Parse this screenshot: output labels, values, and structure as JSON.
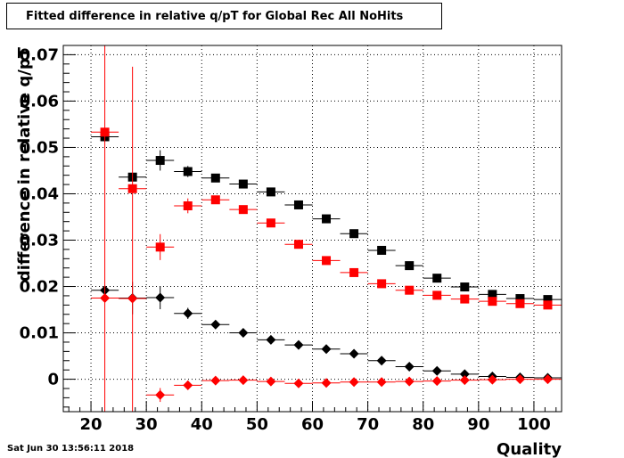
{
  "title": "Fitted difference in relative q/pT  for Global Rec All NoHits",
  "footer": "Sat Jun 30 13:56:11 2018",
  "chart_data": {
    "type": "scatter",
    "title": "Fitted difference in relative q/pT  for Global Rec All NoHits",
    "xlabel": "Quality",
    "ylabel": "difference in relative q/pT",
    "xlim": [
      15,
      105
    ],
    "ylim": [
      -0.007,
      0.072
    ],
    "xticks": [
      "20",
      "30",
      "40",
      "50",
      "60",
      "70",
      "80",
      "90",
      "100"
    ],
    "yticks": [
      "0",
      "0.01",
      "0.02",
      "0.03",
      "0.04",
      "0.05",
      "0.06",
      "0.07"
    ],
    "grid": true,
    "series": [
      {
        "marker": "square",
        "color": "#000000",
        "x": [
          22.5,
          27.5,
          32.5,
          37.5,
          42.5,
          47.5,
          52.5,
          57.5,
          62.5,
          67.5,
          72.5,
          77.5,
          82.5,
          87.5,
          92.5,
          97.5,
          102.5
        ],
        "y": [
          0.0523,
          0.0436,
          0.0472,
          0.0448,
          0.0434,
          0.0421,
          0.0404,
          0.0376,
          0.0346,
          0.0314,
          0.0278,
          0.0245,
          0.0218,
          0.0199,
          0.0183,
          0.0174,
          0.0172
        ],
        "yerr": [
          0.0008,
          0.0008,
          0.0022,
          0.0012,
          0.0008,
          0.0006,
          0.0005,
          0.0005,
          0.0005,
          0.0005,
          0.0005,
          0.0005,
          0.0005,
          0.0005,
          0.0004,
          0.0004,
          0.0004
        ]
      },
      {
        "marker": "square",
        "color": "#ff0000",
        "x": [
          22.5,
          27.5,
          32.5,
          37.5,
          42.5,
          47.5,
          52.5,
          57.5,
          62.5,
          67.5,
          72.5,
          77.5,
          82.5,
          87.5,
          92.5,
          97.5,
          102.5
        ],
        "y": [
          0.0533,
          0.0411,
          0.0285,
          0.0374,
          0.0387,
          0.0366,
          0.0337,
          0.0291,
          0.0256,
          0.023,
          0.0206,
          0.0192,
          0.0181,
          0.0173,
          0.0168,
          0.0163,
          0.016
        ],
        "yerr": [
          0.0008,
          0.0008,
          0.0028,
          0.0016,
          0.0008,
          0.0006,
          0.0005,
          0.0005,
          0.0005,
          0.0005,
          0.0005,
          0.0004,
          0.0004,
          0.0004,
          0.0004,
          0.0004,
          0.0004
        ]
      },
      {
        "marker": "diamond",
        "color": "#000000",
        "x": [
          22.5,
          27.5,
          32.5,
          37.5,
          42.5,
          47.5,
          52.5,
          57.5,
          62.5,
          67.5,
          72.5,
          77.5,
          82.5,
          87.5,
          92.5,
          97.5,
          102.5
        ],
        "y": [
          0.0192,
          0.0175,
          0.0176,
          0.0142,
          0.0118,
          0.01,
          0.0085,
          0.0074,
          0.0065,
          0.0055,
          0.004,
          0.0027,
          0.0018,
          0.0011,
          0.0006,
          0.0004,
          0.0003
        ],
        "yerr": [
          0.001,
          0.0035,
          0.0025,
          0.0012,
          0.0005,
          0.0004,
          0.0004,
          0.0003,
          0.0003,
          0.0003,
          0.0003,
          0.0003,
          0.0003,
          0.0003,
          0.0003,
          0.0003,
          0.0003
        ]
      },
      {
        "marker": "diamond",
        "color": "#ff0000",
        "x": [
          22.5,
          27.5,
          32.5,
          37.5,
          42.5,
          47.5,
          52.5,
          57.5,
          62.5,
          67.5,
          72.5,
          77.5,
          82.5,
          87.5,
          92.5,
          97.5,
          102.5
        ],
        "y": [
          0.0175,
          0.0174,
          -0.0034,
          -0.0013,
          -0.0003,
          -0.0002,
          -0.0005,
          -0.0009,
          -0.0008,
          -0.0006,
          -0.0006,
          -0.0005,
          -0.0004,
          -0.0002,
          -0.0001,
          0.0,
          0.0
        ],
        "yerr": [
          0.09,
          0.05,
          0.0015,
          0.001,
          0.0004,
          0.0003,
          0.0003,
          0.0003,
          0.0003,
          0.0003,
          0.0003,
          0.0003,
          0.0003,
          0.0003,
          0.0003,
          0.0003,
          0.0003
        ]
      }
    ]
  }
}
